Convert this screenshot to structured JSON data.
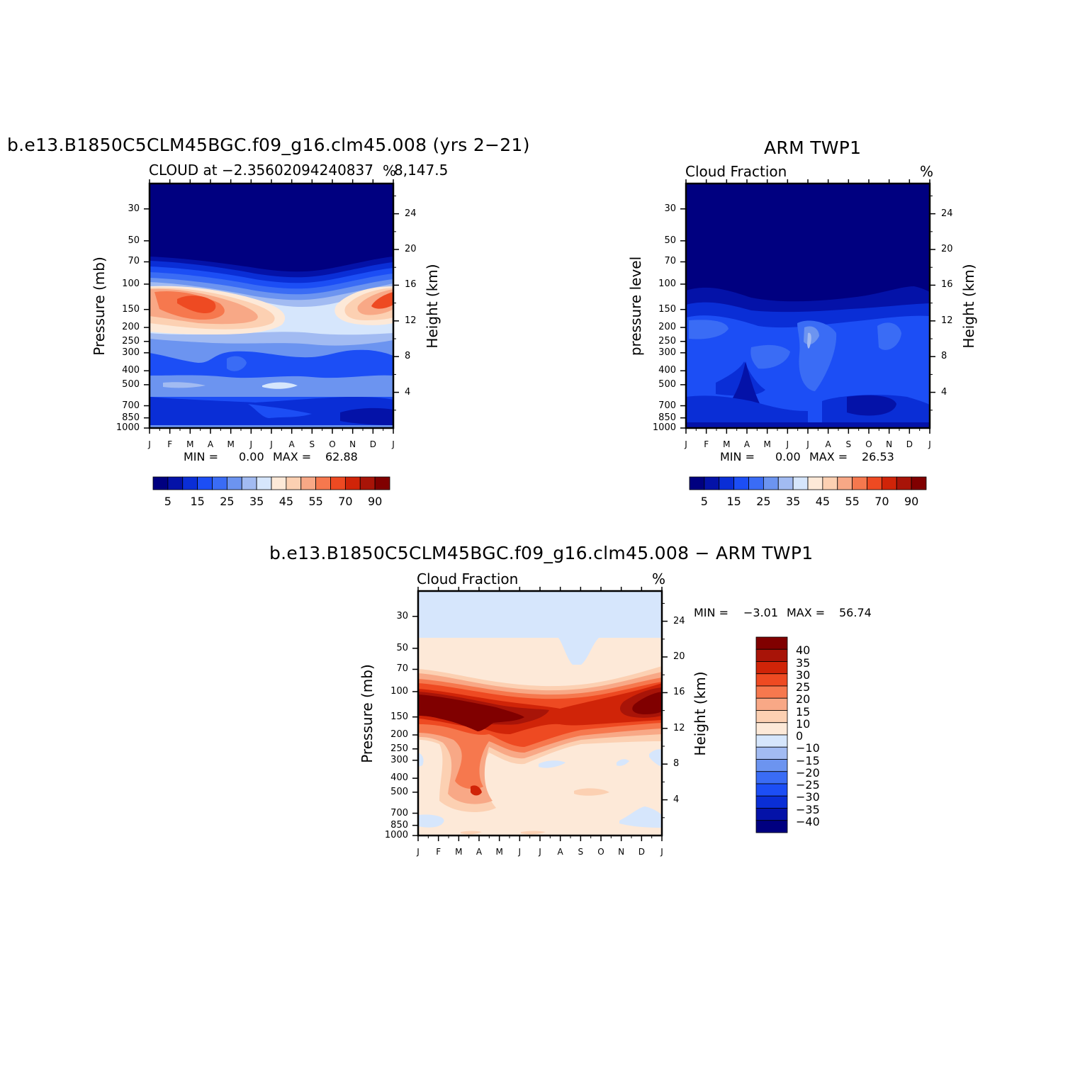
{
  "chart_data": [
    {
      "type": "heatmap",
      "panel": "model",
      "title": "b.e13.B1850C5CLM45BGC.f09_g16.clm45.008 (yrs 2−21)",
      "subtitle_left": "CLOUD at −2.35602094240837",
      "subtitle_right": "%",
      "subtitle_right2": "8,147.5",
      "ylabel_left": "Pressure (mb)",
      "ylabel_right": "Height (km)",
      "x_ticks": [
        "J",
        "F",
        "M",
        "A",
        "M",
        "J",
        "J",
        "A",
        "S",
        "O",
        "N",
        "D",
        "J"
      ],
      "y_ticks_pressure": [
        "30",
        "50",
        "70",
        "100",
        "150",
        "200",
        "250",
        "300",
        "400",
        "500",
        "700",
        "850",
        "1000"
      ],
      "y_ticks_height": [
        "24",
        "20",
        "16",
        "12",
        "8",
        "4"
      ],
      "min_text": "MIN =",
      "min_value": "0.00",
      "max_text": "MAX =",
      "max_value": "62.88",
      "colorbar_labels": [
        "5",
        "15",
        "25",
        "35",
        "45",
        "55",
        "70",
        "90"
      ],
      "levels": [
        5,
        10,
        15,
        20,
        25,
        30,
        35,
        40,
        45,
        50,
        55,
        60,
        70,
        80,
        90
      ],
      "colors": [
        "#000080",
        "#0412a8",
        "#0a2ed6",
        "#1c4ef5",
        "#3a6cf5",
        "#6c94f0",
        "#a2bbf2",
        "#d6e6fc",
        "#fde9d8",
        "#fcd0b2",
        "#f8a886",
        "#f6784e",
        "#ee4a22",
        "#d02408",
        "#a81408",
        "#800000"
      ]
    },
    {
      "type": "heatmap",
      "panel": "obs",
      "title": "ARM TWP1",
      "subtitle_left": "Cloud Fraction",
      "subtitle_right": "%",
      "ylabel_left": "pressure level",
      "ylabel_right": "Height (km)",
      "x_ticks": [
        "J",
        "F",
        "M",
        "A",
        "M",
        "J",
        "J",
        "A",
        "S",
        "O",
        "N",
        "D",
        "J"
      ],
      "y_ticks_pressure": [
        "30",
        "50",
        "70",
        "100",
        "150",
        "200",
        "250",
        "300",
        "400",
        "500",
        "700",
        "850",
        "1000"
      ],
      "y_ticks_height": [
        "24",
        "20",
        "16",
        "12",
        "8",
        "4"
      ],
      "min_text": "MIN =",
      "min_value": "0.00",
      "max_text": "MAX =",
      "max_value": "26.53",
      "colorbar_labels": [
        "5",
        "15",
        "25",
        "35",
        "45",
        "55",
        "70",
        "90"
      ]
    },
    {
      "type": "heatmap",
      "panel": "difference",
      "title": "b.e13.B1850C5CLM45BGC.f09_g16.clm45.008 − ARM TWP1",
      "subtitle_left": "Cloud Fraction",
      "subtitle_right": "%",
      "ylabel_left": "Pressure (mb)",
      "ylabel_right": "Height (km)",
      "x_ticks": [
        "J",
        "F",
        "M",
        "A",
        "M",
        "J",
        "J",
        "A",
        "S",
        "O",
        "N",
        "D",
        "J"
      ],
      "y_ticks_pressure": [
        "30",
        "50",
        "70",
        "100",
        "150",
        "200",
        "250",
        "300",
        "400",
        "500",
        "700",
        "850",
        "1000"
      ],
      "y_ticks_height": [
        "24",
        "20",
        "16",
        "12",
        "8",
        "4"
      ],
      "min_text": "MIN =",
      "min_value": "−3.01",
      "max_text": "MAX =",
      "max_value": "56.74",
      "colorbar_labels": [
        "40",
        "35",
        "30",
        "25",
        "20",
        "15",
        "10",
        "0",
        "−10",
        "−15",
        "−20",
        "−25",
        "−30",
        "−35",
        "−40"
      ],
      "colors": [
        "#800000",
        "#a81408",
        "#d02408",
        "#ee4a22",
        "#f6784e",
        "#f8a886",
        "#fcd0b2",
        "#fde9d8",
        "#d6e6fc",
        "#a2bbf2",
        "#6c94f0",
        "#3a6cf5",
        "#1c4ef5",
        "#0a2ed6",
        "#0412a8",
        "#000080"
      ]
    }
  ]
}
